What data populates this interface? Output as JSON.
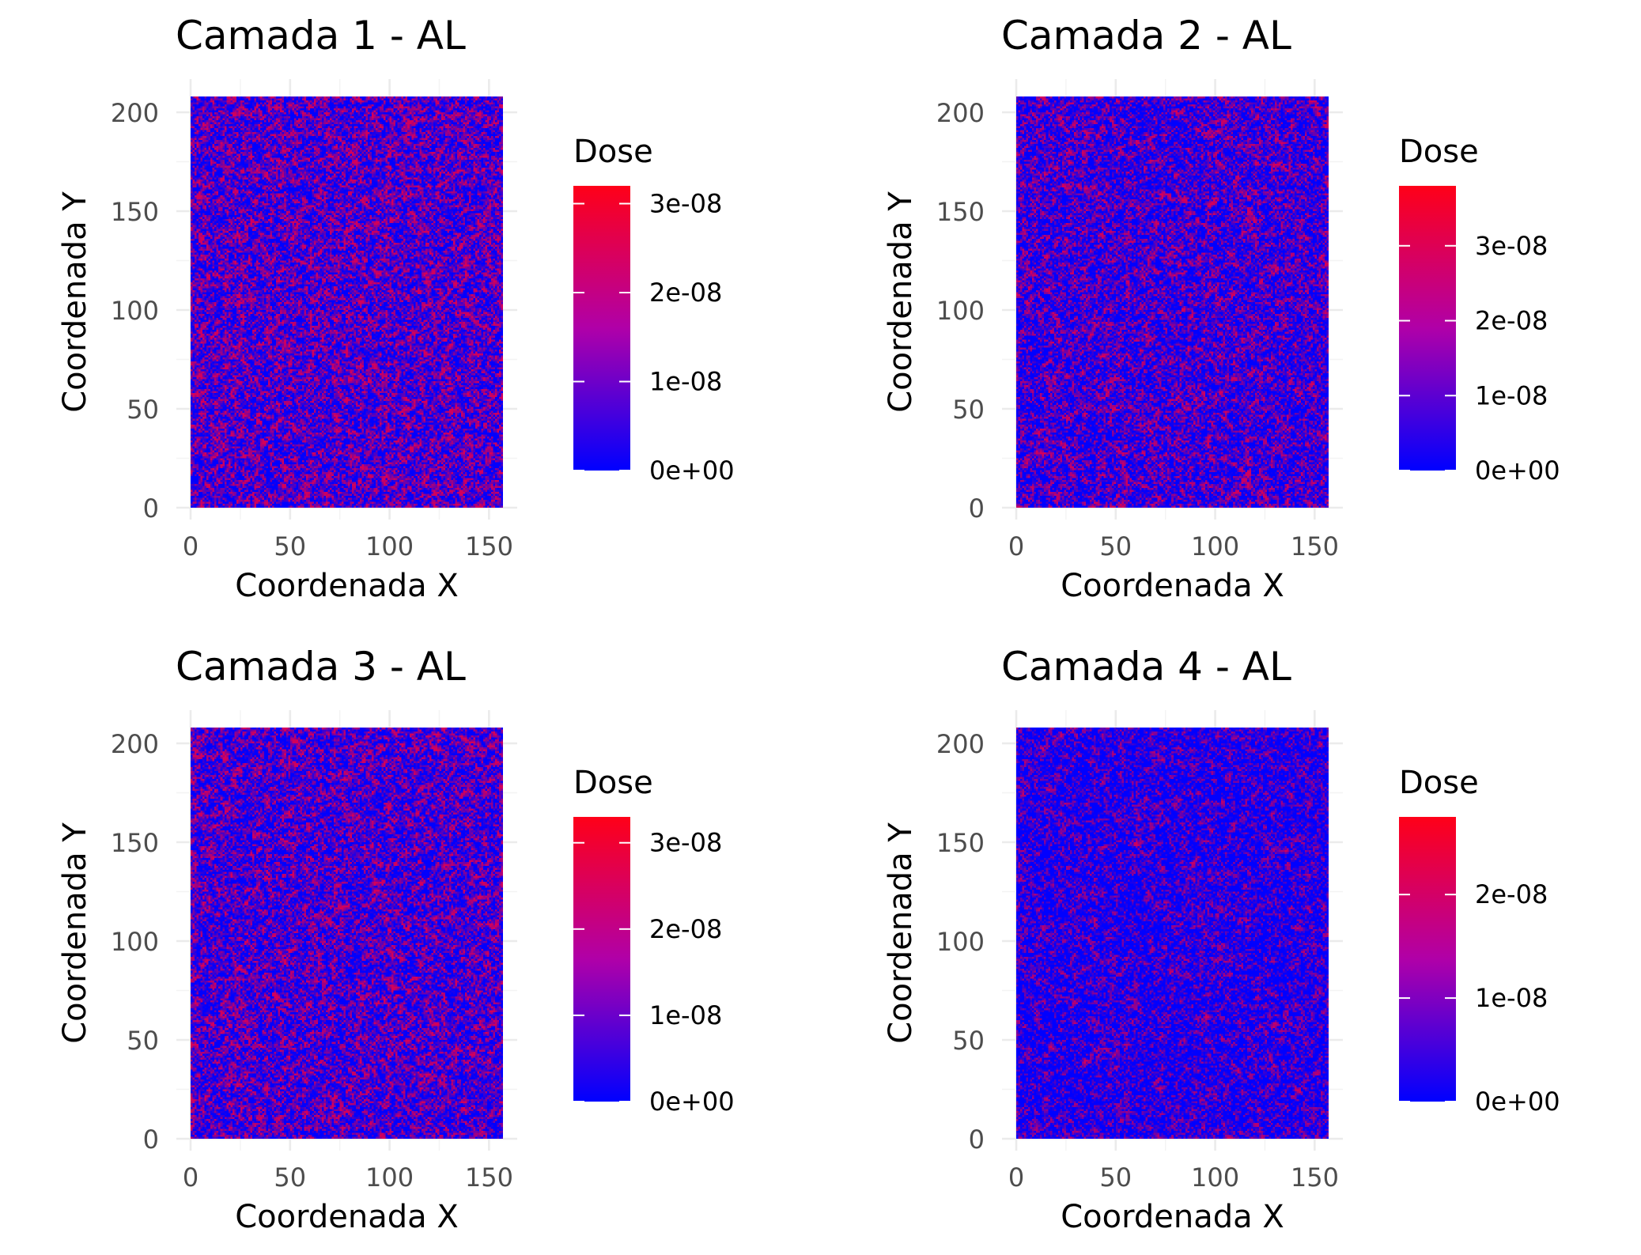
{
  "chart_data": [
    {
      "type": "heatmap",
      "title": "Camada 1 - AL",
      "xlabel": "Coordenada X",
      "ylabel": "Coordenada Y",
      "xlim": [
        0,
        157
      ],
      "ylim": [
        0,
        208
      ],
      "x_ticks": [
        "0",
        "50",
        "100",
        "150"
      ],
      "y_ticks": [
        "0",
        "50",
        "100",
        "150",
        "200"
      ],
      "grid": true,
      "legend": {
        "title": "Dose",
        "placement": "right",
        "min": 0,
        "max": 3.2e-08,
        "ticks": [
          {
            "value": 0,
            "label": "0e+00"
          },
          {
            "value": 1e-08,
            "label": "1e-08"
          },
          {
            "value": 2e-08,
            "label": "2e-08"
          },
          {
            "value": 3e-08,
            "label": "3e-08"
          }
        ]
      },
      "colors": {
        "low": "#0000ff",
        "high": "#ff0000"
      },
      "mean_level": 0.28
    },
    {
      "type": "heatmap",
      "title": "Camada 2 - AL",
      "xlabel": "Coordenada X",
      "ylabel": "Coordenada Y",
      "xlim": [
        0,
        157
      ],
      "ylim": [
        0,
        208
      ],
      "x_ticks": [
        "0",
        "50",
        "100",
        "150"
      ],
      "y_ticks": [
        "0",
        "50",
        "100",
        "150",
        "200"
      ],
      "grid": true,
      "legend": {
        "title": "Dose",
        "placement": "right",
        "min": 0,
        "max": 3.8e-08,
        "ticks": [
          {
            "value": 0,
            "label": "0e+00"
          },
          {
            "value": 1e-08,
            "label": "1e-08"
          },
          {
            "value": 2e-08,
            "label": "2e-08"
          },
          {
            "value": 3e-08,
            "label": "3e-08"
          }
        ]
      },
      "colors": {
        "low": "#0000ff",
        "high": "#ff0000"
      },
      "mean_level": 0.24
    },
    {
      "type": "heatmap",
      "title": "Camada 3 - AL",
      "xlabel": "Coordenada X",
      "ylabel": "Coordenada Y",
      "xlim": [
        0,
        157
      ],
      "ylim": [
        0,
        208
      ],
      "x_ticks": [
        "0",
        "50",
        "100",
        "150"
      ],
      "y_ticks": [
        "0",
        "50",
        "100",
        "150",
        "200"
      ],
      "grid": true,
      "legend": {
        "title": "Dose",
        "placement": "right",
        "min": 0,
        "max": 3.3e-08,
        "ticks": [
          {
            "value": 0,
            "label": "0e+00"
          },
          {
            "value": 1e-08,
            "label": "1e-08"
          },
          {
            "value": 2e-08,
            "label": "2e-08"
          },
          {
            "value": 3e-08,
            "label": "3e-08"
          }
        ]
      },
      "colors": {
        "low": "#0000ff",
        "high": "#ff0000"
      },
      "mean_level": 0.26
    },
    {
      "type": "heatmap",
      "title": "Camada 4 - AL",
      "xlabel": "Coordenada X",
      "ylabel": "Coordenada Y",
      "xlim": [
        0,
        157
      ],
      "ylim": [
        0,
        208
      ],
      "x_ticks": [
        "0",
        "50",
        "100",
        "150"
      ],
      "y_ticks": [
        "0",
        "50",
        "100",
        "150",
        "200"
      ],
      "grid": true,
      "legend": {
        "title": "Dose",
        "placement": "right",
        "min": 0,
        "max": 2.75e-08,
        "ticks": [
          {
            "value": 0,
            "label": "0e+00"
          },
          {
            "value": 1e-08,
            "label": "1e-08"
          },
          {
            "value": 2e-08,
            "label": "2e-08"
          }
        ]
      },
      "colors": {
        "low": "#0000ff",
        "high": "#ff0000"
      },
      "mean_level": 0.17
    }
  ]
}
